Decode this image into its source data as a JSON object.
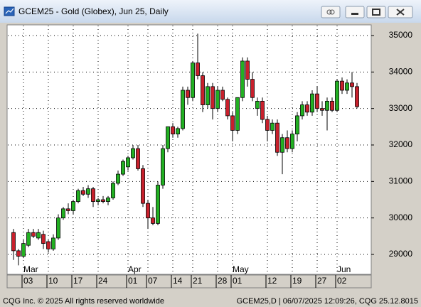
{
  "chart_data": {
    "type": "candlestick",
    "title": "GCEM25 - Gold (Globex), Jun 25, Daily",
    "footer_left": "CQG Inc. © 2025 All rights reserved worldwide",
    "footer_right": "GCEM25,D | 06/07/2025 12:09:26, CQG 25.12.8015",
    "months": [
      "Mar",
      "Apr",
      "May",
      "Jun"
    ],
    "categories": [
      null,
      null,
      "03",
      null,
      null,
      null,
      null,
      "10",
      null,
      null,
      null,
      null,
      "17",
      null,
      null,
      null,
      null,
      "24",
      null,
      null,
      null,
      null,
      null,
      "01",
      null,
      null,
      null,
      "07",
      null,
      null,
      null,
      null,
      "14",
      null,
      null,
      null,
      "21",
      null,
      null,
      null,
      null,
      "28",
      null,
      null,
      "01",
      null,
      null,
      null,
      null,
      null,
      null,
      "12",
      null,
      null,
      null,
      null,
      "19",
      null,
      null,
      null,
      null,
      "27",
      null,
      null,
      null,
      "02",
      null,
      null,
      null,
      null
    ],
    "open": [
      29600,
      29100,
      28950,
      29250,
      29600,
      29450,
      29550,
      29350,
      29150,
      29450,
      30000,
      30250,
      30200,
      30450,
      30750,
      30650,
      30800,
      30450,
      30500,
      30450,
      30550,
      30950,
      31200,
      31400,
      31650,
      31900,
      31350,
      30400,
      30000,
      29850,
      30900,
      31900,
      32500,
      32300,
      32450,
      33500,
      33300,
      34250,
      33900,
      33100,
      33600,
      33000,
      33500,
      33250,
      32800,
      32400,
      33300,
      34300,
      33800,
      33000,
      33200,
      32700,
      32400,
      32600,
      31800,
      32200,
      31900,
      32300,
      32800,
      33100,
      32900,
      33400,
      33000,
      32950,
      33200,
      32950,
      33750,
      33500,
      33700,
      33600
    ],
    "high": [
      29700,
      29150,
      29400,
      29700,
      29700,
      29700,
      29650,
      29400,
      29550,
      30100,
      30300,
      30400,
      30500,
      30800,
      30850,
      30900,
      30850,
      30550,
      30600,
      30600,
      31000,
      31300,
      31600,
      31700,
      32000,
      32000,
      31450,
      30500,
      30300,
      31000,
      32000,
      32500,
      32600,
      32500,
      33600,
      33600,
      34300,
      35050,
      34000,
      33700,
      33700,
      33600,
      33600,
      33300,
      32900,
      33300,
      34400,
      34400,
      34000,
      33300,
      33300,
      32800,
      32700,
      32700,
      32300,
      32400,
      32400,
      32900,
      33200,
      33200,
      33500,
      33600,
      33200,
      33300,
      33300,
      33800,
      33850,
      33800,
      34000,
      33700
    ],
    "low": [
      28850,
      28700,
      28900,
      29200,
      29450,
      29400,
      29150,
      29050,
      29100,
      29400,
      29950,
      30100,
      30100,
      30400,
      30600,
      30550,
      30300,
      30350,
      30400,
      30350,
      30500,
      30900,
      31150,
      31300,
      31600,
      31300,
      30300,
      29700,
      29800,
      29800,
      30800,
      31800,
      32200,
      32200,
      32400,
      33100,
      33200,
      33800,
      32900,
      33000,
      32700,
      32900,
      33200,
      32700,
      32100,
      32300,
      33200,
      33600,
      33200,
      32800,
      32600,
      32100,
      32300,
      31700,
      31200,
      31800,
      31800,
      32100,
      32700,
      32800,
      32800,
      32900,
      32800,
      32400,
      32900,
      32900,
      33400,
      33400,
      33300,
      33000
    ],
    "close": [
      29100,
      28950,
      29300,
      29600,
      29500,
      29600,
      29300,
      29150,
      29450,
      30000,
      30250,
      30200,
      30450,
      30750,
      30650,
      30800,
      30450,
      30500,
      30450,
      30550,
      30950,
      31200,
      31550,
      31650,
      31900,
      31350,
      30400,
      30000,
      29850,
      30900,
      31900,
      32500,
      32300,
      32450,
      33500,
      33300,
      34250,
      33900,
      33100,
      33600,
      33000,
      33500,
      33250,
      32800,
      32400,
      33300,
      34300,
      33800,
      33300,
      33200,
      32700,
      32400,
      32600,
      31800,
      32200,
      31900,
      32300,
      32800,
      33100,
      32900,
      33400,
      33000,
      32950,
      33200,
      32950,
      33750,
      33500,
      33700,
      33600,
      33050
    ],
    "up_color": "#22b022",
    "down_color": "#c8202c",
    "ylim": [
      28455,
      35292
    ],
    "yticks": [
      29000,
      30000,
      31000,
      32000,
      33000,
      34000,
      35000
    ],
    "grid": true
  }
}
